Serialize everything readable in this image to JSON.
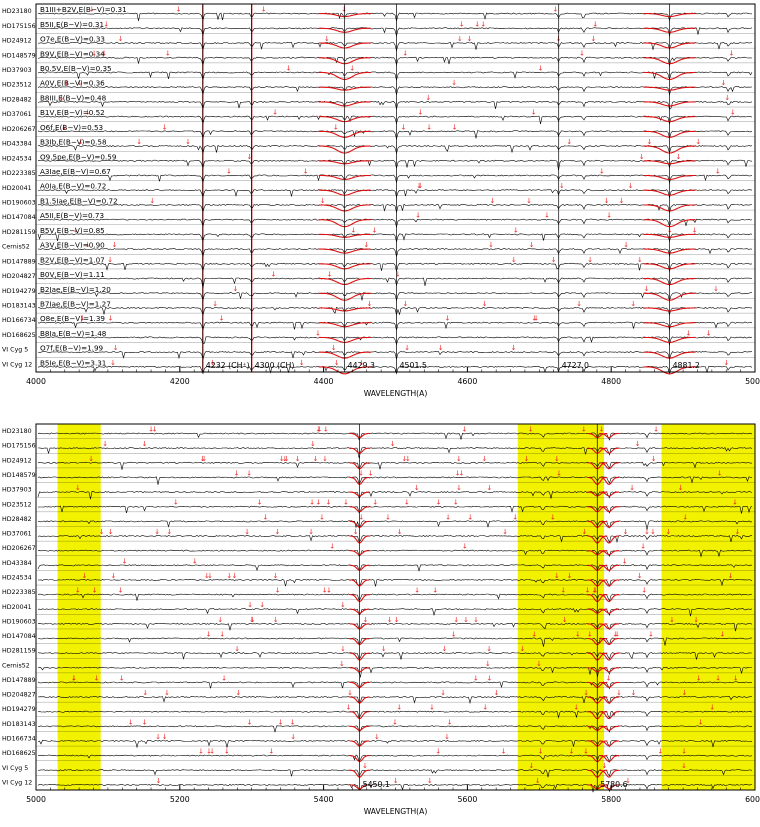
{
  "colors": {
    "spectrum": "#000000",
    "model_profile": "#dd1111",
    "marker": "#ee2222",
    "highlight": "#f2f200",
    "frame": "#000000"
  },
  "stars": [
    "HD23180",
    "HD175156",
    "HD24912",
    "HD148579",
    "HD37903",
    "HD23512",
    "HD28482",
    "HD37061",
    "HD206267",
    "HD43384",
    "HD24534",
    "HD223385",
    "HD20041",
    "HD190603",
    "HD147084",
    "HD281159",
    "Cernis52",
    "HD147889",
    "HD204827",
    "HD194279",
    "HD183143",
    "HD166734",
    "HD168625",
    "VI Cyg 5",
    "VI Cyg 12"
  ],
  "chart_data": [
    {
      "type": "line",
      "panel": "top",
      "xlabel": "WAVELENGTH(A)",
      "xlim": [
        4000,
        5000
      ],
      "xticks": [
        4000,
        4200,
        4400,
        4600,
        4800,
        5000
      ],
      "grid": false,
      "legend": "none",
      "row_labels_left": [
        "HD23180",
        "HD175156",
        "HD24912",
        "HD148579",
        "HD37903",
        "HD23512",
        "HD28482",
        "HD37061",
        "HD206267",
        "HD43384",
        "HD24534",
        "HD223385",
        "HD20041",
        "HD190603",
        "HD147084",
        "HD281159",
        "Cernis52",
        "HD147889",
        "HD204827",
        "HD194279",
        "HD183143",
        "HD166734",
        "HD168625",
        "VI Cyg 5",
        "VI Cyg 12"
      ],
      "row_labels_spectral": [
        "B1III+B2V,E(B−V)=0.31",
        "B5II,E(B−V)=0.31",
        "O7e,E(B−V)=0.33",
        "B9V,E(B−V)=0.34",
        "B0.5V,E(B−V)=0.35",
        "A0V,E(B−V)=0.36",
        "B8III,E(B−V)=0.48",
        "B1V,E(B−V)=0.52",
        "O6f,E(B−V)=0.53",
        "B3Ib,E(B−V)=0.58",
        "O9.5pe,E(B−V)=0.59",
        "A3Iae,E(B−V)=0.67",
        "A0Ia,E(B−V)=0.72",
        "B1.5Iae,E(B−V)=0.72",
        "A5II,E(B−V)=0.73",
        "B5V,E(B−V)=0.85",
        "A3V,E(B−V)=0.90",
        "B2V,E(B−V)=1.07",
        "B0V,E(B−V)=1.11",
        "B2Iae,E(B−V)=1.20",
        "B7Iae,E(B−V)=1.27",
        "O8e,E(B−V)=1.39",
        "B8Ia,E(B−V)=1.48",
        "O7f,E(B−V)=1.99",
        "B5Ie,E(B−V)=3.31"
      ],
      "annotations": [
        {
          "wavelength": 4232,
          "label": "4232 (CH⁺)"
        },
        {
          "wavelength": 4300,
          "label": "4300 (CH)"
        },
        {
          "wavelength": 4429.3,
          "label": "4429.3"
        },
        {
          "wavelength": 4501.5,
          "label": "4501.5"
        },
        {
          "wavelength": 4727.0,
          "label": "4727.0"
        },
        {
          "wavelength": 4881.2,
          "label": "4881.2"
        }
      ],
      "red_vertical_lines": [
        4232,
        4300
      ],
      "broad_model_features": [
        4429.3,
        4881.2
      ],
      "absorption_features": [
        4232,
        4300,
        4429.3,
        4501.5,
        4727.0,
        4762,
        4881.2,
        4963
      ],
      "highlight_bands": []
    },
    {
      "type": "line",
      "panel": "bottom",
      "xlabel": "WAVELENGTH(A)",
      "xlim": [
        5000,
        6000
      ],
      "xticks": [
        5000,
        5200,
        5400,
        5600,
        5800,
        6000
      ],
      "grid": false,
      "legend": "none",
      "row_labels_left": [
        "HD23180",
        "HD175156",
        "HD24912",
        "HD148579",
        "HD37903",
        "HD23512",
        "HD28482",
        "HD37061",
        "HD206267",
        "HD43384",
        "HD24534",
        "HD223385",
        "HD20041",
        "HD190603",
        "HD147084",
        "HD281159",
        "Cernis52",
        "HD147889",
        "HD204827",
        "HD194279",
        "HD183143",
        "HD166734",
        "HD168625",
        "VI Cyg 5",
        "VI Cyg 12"
      ],
      "annotations": [
        {
          "wavelength": 5450.1,
          "label": "5450.1"
        },
        {
          "wavelength": 5780.6,
          "label": "5780.6"
        }
      ],
      "red_vertical_lines": [],
      "broad_model_features": [
        5450.1,
        5780.6,
        5797
      ],
      "absorption_features": [
        5450.1,
        5705,
        5780.6,
        5797,
        5850
      ],
      "highlight_bands": [
        [
          5030,
          5090
        ],
        [
          5670,
          5790
        ],
        [
          5870,
          6000
        ]
      ]
    }
  ]
}
